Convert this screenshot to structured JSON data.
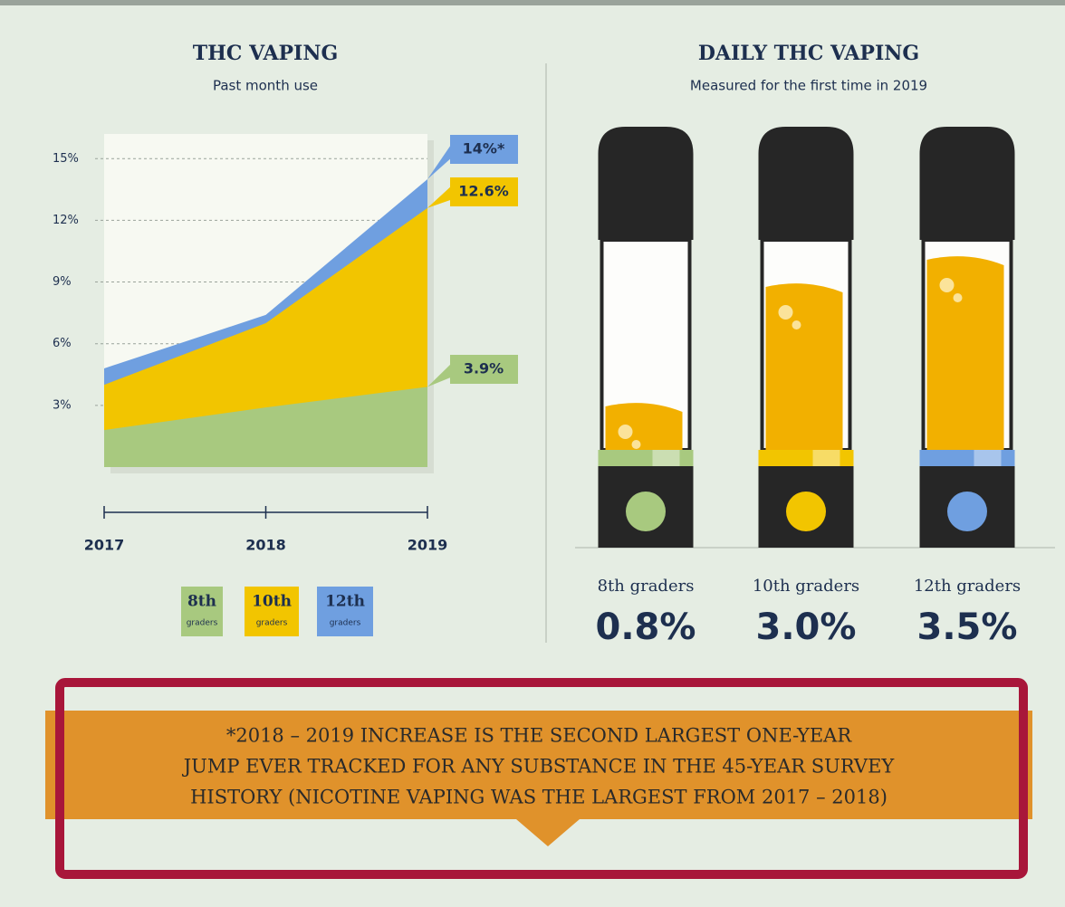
{
  "chart_data": [
    {
      "type": "area",
      "title": "THC VAPING",
      "subtitle": "Past month use",
      "x": [
        2017,
        2018,
        2019
      ],
      "xlim": [
        2017,
        2019
      ],
      "xticks": [
        2017,
        2018,
        2019
      ],
      "ylim": [
        0,
        16.2
      ],
      "yticks": [
        {
          "value": 3,
          "label": "3%"
        },
        {
          "value": 6,
          "label": "6%"
        },
        {
          "value": 9,
          "label": "9%"
        },
        {
          "value": 12,
          "label": "12%"
        },
        {
          "value": 15,
          "label": "15%"
        }
      ],
      "grid": true,
      "legend_note": "graders",
      "series": [
        {
          "name": "8th",
          "color": "#a8c97f",
          "values": [
            1.8,
            2.9,
            3.9
          ],
          "value_labels": [
            null,
            null,
            "3.9%"
          ]
        },
        {
          "name": "10th",
          "color": "#f2c500",
          "values": [
            4.0,
            7.0,
            12.6
          ],
          "value_labels": [
            null,
            null,
            "12.6%"
          ]
        },
        {
          "name": "12th",
          "color": "#6f9fe0",
          "values": [
            4.8,
            7.4,
            14
          ],
          "value_labels": [
            null,
            null,
            "14%*"
          ]
        }
      ]
    },
    {
      "type": "pod",
      "title": "DAILY THC VAPING",
      "subtitle": "Measured for the first time in 2019",
      "categories": [
        "8th graders",
        "10th graders",
        "12th graders"
      ],
      "values": [
        0.8,
        3.0,
        3.5
      ],
      "value_labels": [
        "0.8%",
        "3.0%",
        "3.5%"
      ],
      "colors": [
        "#a8c97f",
        "#f2c500",
        "#6f9fe0"
      ],
      "fill_color": "#f2b000"
    }
  ],
  "footnote": [
    "*2018 – 2019 INCREASE IS THE SECOND LARGEST ONE-YEAR",
    "JUMP EVER TRACKED FOR ANY SUBSTANCE IN THE 45-YEAR SURVEY",
    "HISTORY (NICOTINE VAPING WAS THE LARGEST FROM 2017 – 2018)"
  ]
}
